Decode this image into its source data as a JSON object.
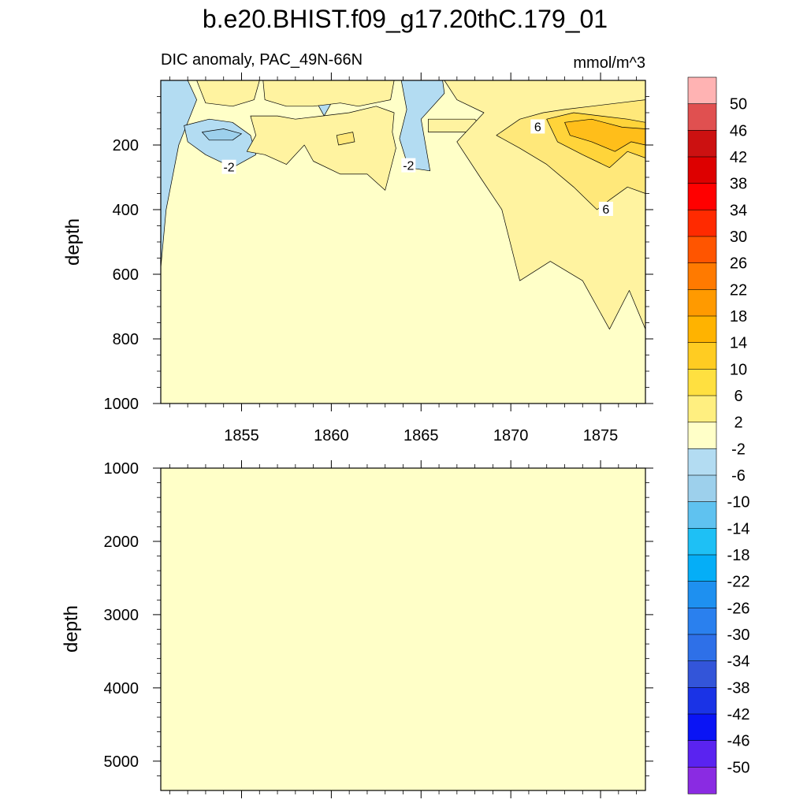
{
  "chart_data": [
    {
      "type": "heatmap",
      "title": "b.e20.BHIST.f09_g17.20thC.179_01",
      "left_label": "DIC anomaly, PAC_49N-66N",
      "right_label": "mmol/m^3",
      "xlabel": "",
      "ylabel": "depth",
      "xlim": [
        1850.5,
        1877.5
      ],
      "ylim": [
        0,
        1000
      ],
      "y_inverted": true,
      "x_ticks": [
        1855,
        1860,
        1865,
        1870,
        1875
      ],
      "x_tick_labels": [
        "1855",
        "1860",
        "1865",
        "1870",
        "1875"
      ],
      "y_ticks": [
        200,
        400,
        600,
        800,
        1000
      ],
      "y_tick_labels": [
        "200",
        "400",
        "600",
        "800",
        "1000"
      ],
      "background_level": "-2 to 2",
      "regions": [
        {
          "name": "neg-left",
          "level": "-6 to -2",
          "color": "#b3dcf2",
          "points": [
            [
              1850.5,
              0
            ],
            [
              1852.0,
              0
            ],
            [
              1852.5,
              60
            ],
            [
              1851.5,
              200
            ],
            [
              1850.8,
              400
            ],
            [
              1850.5,
              580
            ]
          ]
        },
        {
          "name": "neg-left-body",
          "level": "-6 to -2",
          "color": "#b3dcf2",
          "points": [
            [
              1851.8,
              140
            ],
            [
              1853.2,
              120
            ],
            [
              1854.5,
              130
            ],
            [
              1855.5,
              170
            ],
            [
              1855.8,
              230
            ],
            [
              1854.5,
              270
            ],
            [
              1853.0,
              230
            ],
            [
              1852.0,
              190
            ]
          ]
        },
        {
          "name": "neg-left-core",
          "level": "-10 to -6",
          "color": "#9dd0ec",
          "points": [
            [
              1852.8,
              160
            ],
            [
              1854.0,
              150
            ],
            [
              1855.0,
              165
            ],
            [
              1854.5,
              185
            ],
            [
              1853.2,
              185
            ]
          ]
        },
        {
          "name": "neg-1859",
          "level": "-6 to -2",
          "color": "#b3dcf2",
          "points": [
            [
              1859.3,
              20
            ],
            [
              1859.9,
              10
            ],
            [
              1860.1,
              60
            ],
            [
              1859.6,
              110
            ],
            [
              1859.2,
              70
            ]
          ]
        },
        {
          "name": "neg-1864",
          "level": "-6 to -2",
          "color": "#b3dcf2",
          "points": [
            [
              1863.9,
              0
            ],
            [
              1866.2,
              0
            ],
            [
              1866.3,
              40
            ],
            [
              1865.0,
              120
            ],
            [
              1865.5,
              280
            ],
            [
              1864.3,
              270
            ],
            [
              1863.8,
              180
            ],
            [
              1864.2,
              90
            ]
          ]
        },
        {
          "name": "neg-1868",
          "level": "-6 to -2",
          "color": "#b3dcf2",
          "points": [
            [
              1868.2,
              130
            ],
            [
              1868.5,
              125
            ],
            [
              1868.5,
              150
            ],
            [
              1868.2,
              150
            ]
          ]
        },
        {
          "name": "neg-1874",
          "level": "-6 to -2",
          "color": "#b3dcf2",
          "points": [
            [
              1873.6,
              10
            ],
            [
              1873.9,
              5
            ],
            [
              1874.0,
              25
            ],
            [
              1873.7,
              30
            ]
          ]
        },
        {
          "name": "pos-top-1852",
          "level": "2 to 6",
          "color": "#fff3a0",
          "points": [
            [
              1852.5,
              0
            ],
            [
              1856.0,
              0
            ],
            [
              1855.7,
              60
            ],
            [
              1854.5,
              80
            ],
            [
              1853.0,
              70
            ]
          ]
        },
        {
          "name": "pos-band-1855-1863",
          "level": "2 to 6",
          "color": "#fff3a0",
          "points": [
            [
              1855.5,
              110
            ],
            [
              1857.0,
              110
            ],
            [
              1858.0,
              120
            ],
            [
              1859.5,
              110
            ],
            [
              1861.0,
              100
            ],
            [
              1862.5,
              80
            ],
            [
              1863.5,
              100
            ],
            [
              1863.4,
              160
            ],
            [
              1863.6,
              210
            ],
            [
              1863.0,
              340
            ],
            [
              1862.0,
              290
            ],
            [
              1860.5,
              290
            ],
            [
              1859.0,
              250
            ],
            [
              1858.5,
              200
            ],
            [
              1857.5,
              260
            ],
            [
              1856.3,
              230
            ],
            [
              1855.3,
              220
            ],
            [
              1855.8,
              170
            ]
          ]
        },
        {
          "name": "pos-top-1856-1863",
          "level": "2 to 6",
          "color": "#fff3a0",
          "points": [
            [
              1856.2,
              0
            ],
            [
              1863.5,
              0
            ],
            [
              1863.3,
              60
            ],
            [
              1861.5,
              80
            ],
            [
              1860.5,
              70
            ],
            [
              1859.0,
              80
            ],
            [
              1857.5,
              80
            ],
            [
              1856.3,
              60
            ]
          ]
        },
        {
          "name": "pos-core-1860",
          "level": "6 to 10",
          "color": "#ffe87a",
          "points": [
            [
              1860.3,
              170
            ],
            [
              1861.2,
              160
            ],
            [
              1861.3,
              190
            ],
            [
              1860.4,
              200
            ]
          ]
        },
        {
          "name": "pos-1866",
          "level": "2 to 6",
          "color": "#fff3a0",
          "points": [
            [
              1865.4,
              120
            ],
            [
              1868.0,
              120
            ],
            [
              1868.5,
              150
            ],
            [
              1867.5,
              160
            ],
            [
              1865.4,
              160
            ]
          ]
        },
        {
          "name": "pos-right-outer",
          "level": "2 to 6",
          "color": "#fff3a0",
          "points": [
            [
              1866.3,
              0
            ],
            [
              1877.5,
              0
            ],
            [
              1877.5,
              770
            ],
            [
              1876.6,
              650
            ],
            [
              1875.5,
              770
            ],
            [
              1874.0,
              620
            ],
            [
              1872.2,
              560
            ],
            [
              1870.5,
              620
            ],
            [
              1869.5,
              400
            ],
            [
              1868.3,
              300
            ],
            [
              1867.0,
              190
            ],
            [
              1868.5,
              100
            ],
            [
              1867.0,
              60
            ]
          ]
        },
        {
          "name": "pos-right-inner",
          "level": "6 to 10",
          "color": "#ffe87a",
          "points": [
            [
              1869.2,
              170
            ],
            [
              1870.5,
              120
            ],
            [
              1871.8,
              100
            ],
            [
              1873.0,
              90
            ],
            [
              1874.5,
              80
            ],
            [
              1876.0,
              70
            ],
            [
              1877.5,
              60
            ],
            [
              1877.5,
              350
            ],
            [
              1876.5,
              330
            ],
            [
              1875.5,
              370
            ],
            [
              1874.8,
              400
            ],
            [
              1873.5,
              330
            ],
            [
              1872.0,
              260
            ],
            [
              1870.5,
              210
            ]
          ]
        },
        {
          "name": "pos-right-core",
          "level": "10 to 14",
          "color": "#ffd43a",
          "points": [
            [
              1872.0,
              120
            ],
            [
              1873.5,
              100
            ],
            [
              1875.0,
              110
            ],
            [
              1876.5,
              120
            ],
            [
              1877.5,
              130
            ],
            [
              1877.5,
              240
            ],
            [
              1876.5,
              220
            ],
            [
              1875.5,
              270
            ],
            [
              1874.0,
              230
            ],
            [
              1872.6,
              190
            ]
          ]
        },
        {
          "name": "pos-right-max",
          "level": "14 to 18",
          "color": "#ffbe1a",
          "points": [
            [
              1873.0,
              130
            ],
            [
              1874.5,
              120
            ],
            [
              1876.2,
              145
            ],
            [
              1877.5,
              150
            ],
            [
              1877.5,
              200
            ],
            [
              1876.7,
              190
            ],
            [
              1875.8,
              220
            ],
            [
              1874.5,
              190
            ],
            [
              1873.3,
              170
            ]
          ]
        }
      ],
      "contour_labels": [
        {
          "text": "-2",
          "x": 1854.3,
          "y": 270
        },
        {
          "text": "-2",
          "x": 1864.3,
          "y": 265
        },
        {
          "text": "6",
          "x": 1871.5,
          "y": 145
        },
        {
          "text": "6",
          "x": 1875.3,
          "y": 400
        }
      ]
    },
    {
      "type": "heatmap",
      "xlabel": "",
      "ylabel": "depth",
      "xlim": [
        1850.5,
        1877.5
      ],
      "ylim": [
        1000,
        5400
      ],
      "y_inverted": true,
      "y_ticks": [
        1000,
        2000,
        3000,
        4000,
        5000
      ],
      "y_tick_labels": [
        "1000",
        "2000",
        "3000",
        "4000",
        "5000"
      ],
      "background_level": "-2 to 2",
      "regions": []
    }
  ],
  "colorbar": {
    "labels": [
      "50",
      "46",
      "42",
      "38",
      "34",
      "30",
      "26",
      "22",
      "18",
      "14",
      "10",
      "6",
      "2",
      "-2",
      "-6",
      "-10",
      "-14",
      "-18",
      "-22",
      "-26",
      "-30",
      "-34",
      "-38",
      "-42",
      "-46",
      "-50"
    ],
    "colors": [
      "#ffb3b3",
      "#e05050",
      "#cc1111",
      "#dd0000",
      "#ff0000",
      "#ff2a00",
      "#ff5500",
      "#ff7a00",
      "#ff9a00",
      "#ffb300",
      "#ffcc22",
      "#ffe040",
      "#ffef80",
      "#ffffc8",
      "#b3dcf2",
      "#9dd0ec",
      "#5fc2f0",
      "#1ec0f5",
      "#05aef7",
      "#1e90f0",
      "#2a80ee",
      "#2e70e8",
      "#3355d9",
      "#1a33e6",
      "#0a14f5",
      "#5a23f0",
      "#8a2be2"
    ]
  },
  "colors": {
    "background_fill": "#ffffc8",
    "contour_line": "#000000"
  }
}
